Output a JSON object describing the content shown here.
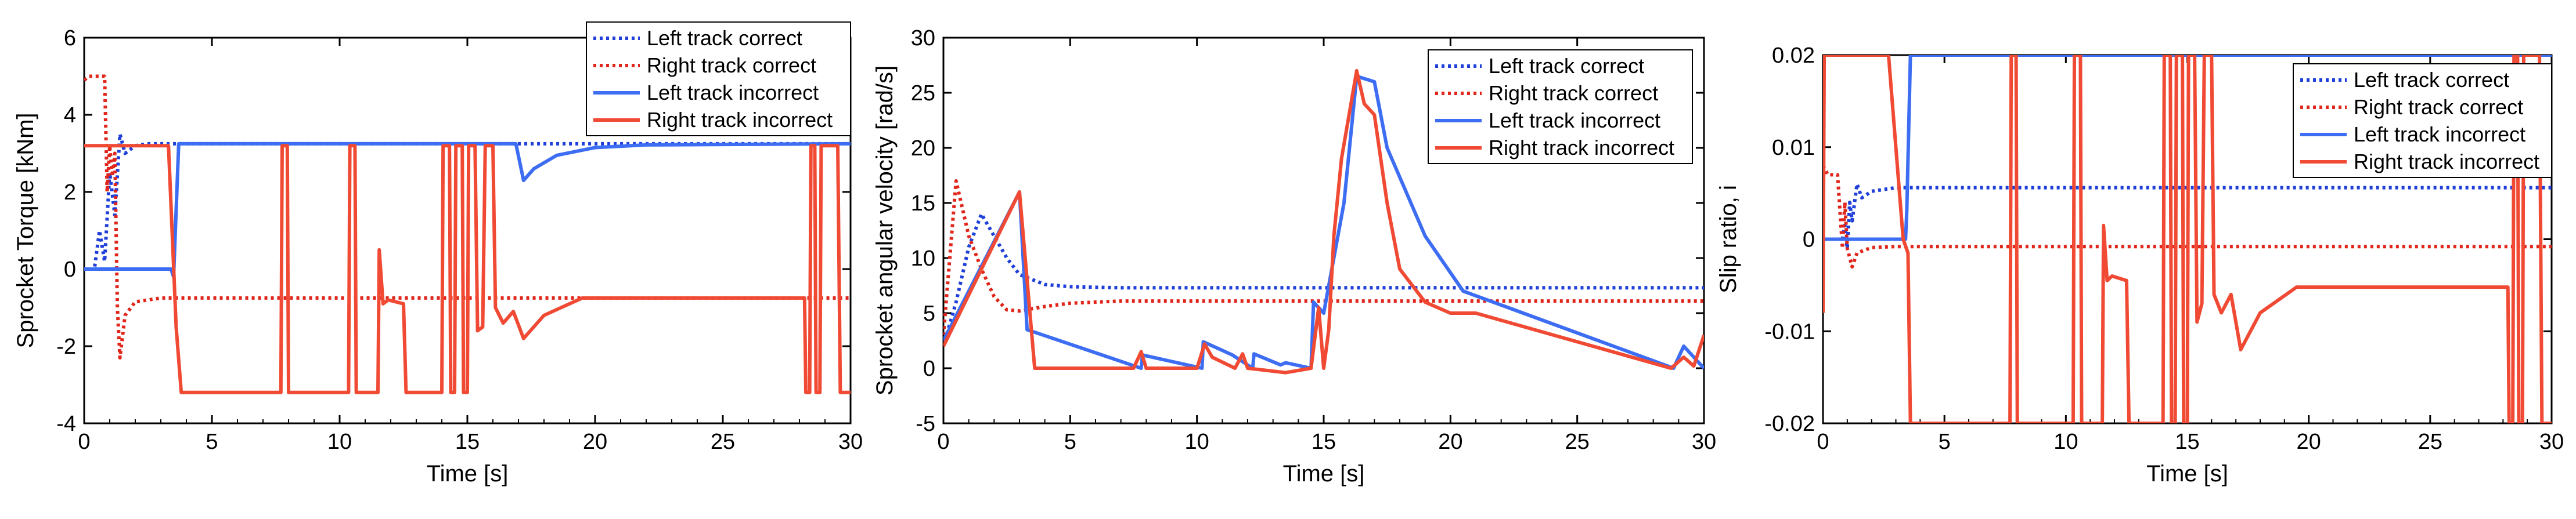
{
  "figure": {
    "series_styles": [
      {
        "name": "Left track correct",
        "color": "#1f3fd8",
        "dash": "dotted"
      },
      {
        "name": "Right track correct",
        "color": "#e0261b",
        "dash": "dotted"
      },
      {
        "name": "Left track incorrect",
        "color": "#3d6df2",
        "dash": "solid"
      },
      {
        "name": "Right track incorrect",
        "color": "#f04a34",
        "dash": "solid"
      }
    ]
  },
  "chart_data": [
    {
      "type": "line",
      "xlabel": "Time [s]",
      "ylabel": "Sprocket Torque [kNm]",
      "xlim": [
        0,
        30
      ],
      "ylim": [
        -4,
        6
      ],
      "xticks": [
        0,
        5,
        10,
        15,
        20,
        25,
        30
      ],
      "yticks": [
        -4,
        -2,
        0,
        2,
        4,
        6
      ],
      "legend": "top-right",
      "series": [
        {
          "name": "Left track correct",
          "x": [
            0,
            0.4,
            0.6,
            0.8,
            1.0,
            1.2,
            1.4,
            1.6,
            2.0,
            2.5,
            3.0,
            30
          ],
          "y": [
            0,
            0,
            1.0,
            0.2,
            2.5,
            1.4,
            3.5,
            3.0,
            3.2,
            3.25,
            3.25,
            3.25
          ]
        },
        {
          "name": "Right track correct",
          "x": [
            0,
            0.2,
            0.8,
            0.9,
            1.0,
            1.1,
            1.2,
            1.3,
            1.4,
            1.6,
            2.0,
            3.0,
            5.0,
            30
          ],
          "y": [
            4.9,
            5.0,
            5.0,
            2.0,
            3.2,
            2.4,
            3.0,
            -1.0,
            -2.3,
            -1.2,
            -0.85,
            -0.75,
            -0.75,
            -0.75
          ]
        },
        {
          "name": "Left track incorrect",
          "x": [
            0,
            3.4,
            3.5,
            3.7,
            16.9,
            17.2,
            17.6,
            18.5,
            20,
            22,
            30
          ],
          "y": [
            0,
            0,
            -0.2,
            3.25,
            3.25,
            2.3,
            2.6,
            2.95,
            3.15,
            3.22,
            3.25
          ]
        },
        {
          "name": "Right track incorrect",
          "x": [
            0,
            2.2,
            3.3,
            3.6,
            3.8,
            7.7,
            7.75,
            7.95,
            8.0,
            10.35,
            10.4,
            10.6,
            10.65,
            11.5,
            11.55,
            11.7,
            11.9,
            12.5,
            12.6,
            14.0,
            14.05,
            14.3,
            14.35,
            14.5,
            14.55,
            14.8,
            14.85,
            15.0,
            15.05,
            15.3,
            15.4,
            15.6,
            15.7,
            16.0,
            16.1,
            16.4,
            16.8,
            17.2,
            18.0,
            19.5,
            28.2,
            28.25,
            28.4,
            28.45,
            28.6,
            28.65,
            28.8,
            28.85,
            29.5,
            29.6,
            30
          ],
          "y": [
            3.2,
            3.2,
            3.2,
            -1.5,
            -3.2,
            -3.2,
            3.2,
            3.2,
            -3.2,
            -3.2,
            3.2,
            3.2,
            -3.2,
            -3.2,
            0.5,
            -0.9,
            -0.8,
            -0.9,
            -3.2,
            -3.2,
            3.2,
            3.2,
            -3.2,
            -3.2,
            3.2,
            3.2,
            -3.2,
            -3.2,
            3.2,
            3.2,
            -1.6,
            -1.5,
            3.2,
            3.2,
            -1.0,
            -1.4,
            -1.1,
            -1.8,
            -1.2,
            -0.75,
            -0.75,
            -3.2,
            -3.2,
            3.2,
            3.2,
            -3.2,
            -3.2,
            3.2,
            3.2,
            -3.2,
            -3.2
          ]
        }
      ]
    },
    {
      "type": "line",
      "xlabel": "Time [s]",
      "ylabel": "Sprocket angular velocity [rad/s]",
      "xlim": [
        0,
        30
      ],
      "ylim": [
        -5,
        30
      ],
      "xticks": [
        0,
        5,
        10,
        15,
        20,
        25,
        30
      ],
      "yticks": [
        -5,
        0,
        5,
        10,
        15,
        20,
        25,
        30
      ],
      "legend": "top-right",
      "series": [
        {
          "name": "Left track correct",
          "x": [
            0,
            0.5,
            1.0,
            1.5,
            2.0,
            2.5,
            3.0,
            4.0,
            5.0,
            7.0,
            10.0,
            30
          ],
          "y": [
            2,
            6,
            11,
            14,
            12,
            10,
            8.5,
            7.6,
            7.4,
            7.3,
            7.3,
            7.3
          ]
        },
        {
          "name": "Right track correct",
          "x": [
            0,
            0.5,
            1.0,
            1.5,
            2.0,
            2.5,
            3.0,
            4.0,
            5.0,
            7.0,
            30
          ],
          "y": [
            3,
            17,
            12,
            9,
            6.5,
            5.3,
            5.2,
            5.6,
            5.9,
            6.1,
            6.1
          ]
        },
        {
          "name": "Left track incorrect",
          "x": [
            0,
            3.0,
            3.3,
            7.8,
            7.85,
            10.2,
            10.25,
            11.4,
            12.2,
            12.25,
            13.3,
            13.5,
            14.5,
            14.6,
            15.0,
            15.8,
            16.3,
            17.0,
            17.5,
            19.0,
            20.5,
            28.8,
            29.2,
            30
          ],
          "y": [
            2.5,
            16,
            3.5,
            0,
            1.2,
            0,
            2.4,
            1.2,
            0,
            1.3,
            0.3,
            0.5,
            0,
            6,
            5,
            15,
            26.5,
            26,
            20,
            12,
            7,
            0,
            2,
            0
          ]
        },
        {
          "name": "Right track incorrect",
          "x": [
            0,
            3.0,
            3.6,
            4.0,
            7.5,
            7.8,
            8.0,
            10.0,
            10.3,
            10.6,
            11.5,
            11.8,
            12.0,
            13.5,
            14.5,
            14.8,
            15.0,
            15.2,
            15.4,
            15.7,
            16.3,
            16.6,
            17.0,
            17.5,
            18.0,
            19.0,
            20.0,
            21.0,
            28.7,
            29.2,
            29.6,
            30
          ],
          "y": [
            2,
            16,
            0,
            0,
            0,
            1.5,
            0,
            0,
            2.2,
            1.0,
            0,
            1.3,
            0,
            -0.4,
            0,
            5.5,
            0,
            3.5,
            12,
            19,
            27,
            24,
            23,
            15,
            9,
            6,
            5,
            5,
            0,
            1.0,
            0.2,
            3
          ]
        }
      ]
    },
    {
      "type": "line",
      "xlabel": "Time [s]",
      "ylabel": "Slip ratio, i",
      "xlim": [
        0,
        30
      ],
      "ylim": [
        -0.02,
        0.02
      ],
      "xticks": [
        0,
        5,
        10,
        15,
        20,
        25,
        30
      ],
      "yticks": [
        -0.02,
        -0.01,
        0,
        0.01,
        0.02
      ],
      "ytick_labels": [
        "-0.02",
        "-0.01",
        "0",
        "0.01",
        "0.02"
      ],
      "legend": "top-right",
      "series": [
        {
          "name": "Left track correct",
          "x": [
            0,
            0.8,
            0.9,
            1.0,
            1.1,
            1.2,
            1.4,
            1.6,
            2.0,
            3.0,
            30
          ],
          "y": [
            0,
            0,
            0.0015,
            -0.001,
            0.004,
            0.002,
            0.006,
            0.0045,
            0.0052,
            0.0056,
            0.0056
          ]
        },
        {
          "name": "Right track correct",
          "x": [
            0,
            0.2,
            0.6,
            0.8,
            0.9,
            1.0,
            1.2,
            1.4,
            2.0,
            3.0,
            30
          ],
          "y": [
            0.008,
            0.007,
            0.007,
            -0.001,
            0.004,
            -0.001,
            -0.003,
            -0.0015,
            -0.0009,
            -0.0008,
            -0.0008
          ]
        },
        {
          "name": "Left track incorrect",
          "x": [
            0,
            3.4,
            3.45,
            3.6,
            30
          ],
          "y": [
            0,
            0,
            0.003,
            0.02,
            0.02
          ]
        },
        {
          "name": "Right track incorrect",
          "x": [
            0,
            0.05,
            2.2,
            2.7,
            3.3,
            3.5,
            3.6,
            7.7,
            7.75,
            7.95,
            8.0,
            10.3,
            10.35,
            10.6,
            10.65,
            11.5,
            11.55,
            11.7,
            11.9,
            12.5,
            12.6,
            14.0,
            14.05,
            14.3,
            14.35,
            14.5,
            14.55,
            14.8,
            14.85,
            15.0,
            15.05,
            15.3,
            15.4,
            15.6,
            15.7,
            16.0,
            16.1,
            16.4,
            16.8,
            17.2,
            18.0,
            19.5,
            28.2,
            28.25,
            28.4,
            28.45,
            28.6,
            28.65,
            28.8,
            28.85,
            29.5,
            29.6,
            30
          ],
          "y": [
            -0.008,
            0.02,
            0.02,
            0.02,
            0.0,
            -0.0015,
            -0.02,
            -0.02,
            0.02,
            0.02,
            -0.02,
            -0.02,
            0.02,
            0.02,
            -0.02,
            -0.02,
            0.0015,
            -0.0045,
            -0.004,
            -0.0045,
            -0.02,
            -0.02,
            0.02,
            0.02,
            -0.02,
            -0.02,
            0.02,
            0.02,
            -0.02,
            -0.02,
            0.02,
            0.02,
            -0.009,
            -0.007,
            0.02,
            0.02,
            -0.006,
            -0.008,
            -0.006,
            -0.012,
            -0.008,
            -0.0052,
            -0.0052,
            -0.02,
            -0.02,
            0.02,
            0.02,
            -0.02,
            -0.02,
            0.02,
            0.02,
            -0.02,
            -0.02
          ]
        }
      ]
    }
  ]
}
